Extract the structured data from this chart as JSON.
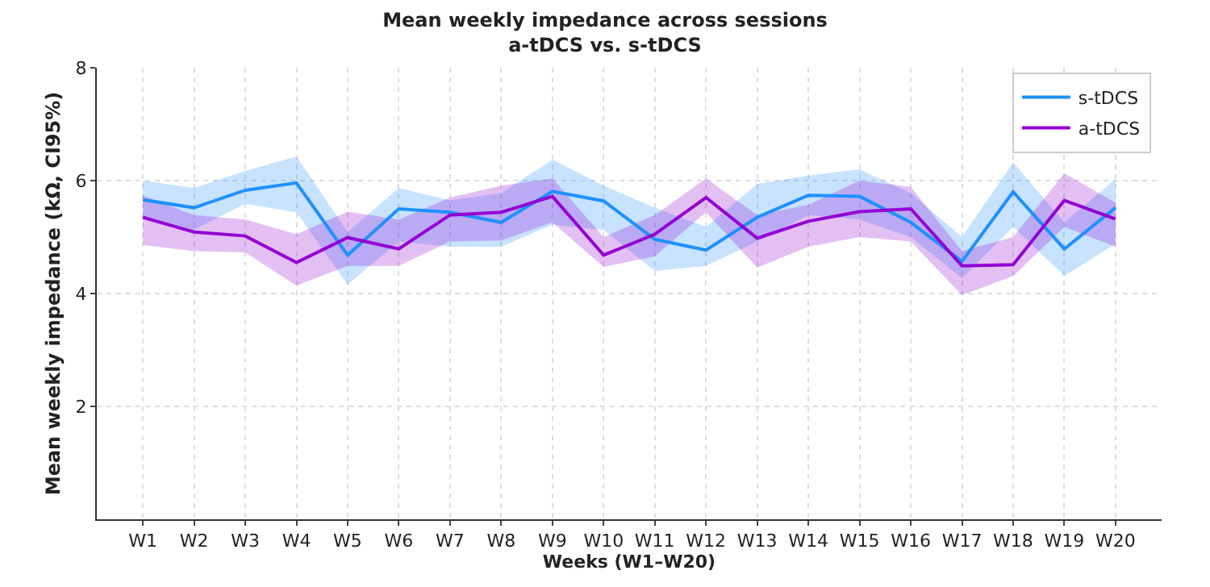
{
  "chart_data": {
    "type": "line",
    "title": "Mean weekly impedance across sessions\na-tDCS vs. s-tDCS",
    "xlabel": "Weeks (W1–W20)",
    "ylabel": "Mean weekly impedance (kΩ, CI95%)",
    "categories": [
      "W1",
      "W2",
      "W3",
      "W4",
      "W5",
      "W6",
      "W7",
      "W8",
      "W9",
      "W10",
      "W11",
      "W12",
      "W13",
      "W14",
      "W15",
      "W16",
      "W17",
      "W18",
      "W19",
      "W20"
    ],
    "series": [
      {
        "name": "s-tDCS",
        "color": "#1e90ff",
        "values": [
          5.66,
          5.52,
          5.83,
          5.96,
          4.68,
          5.5,
          5.44,
          5.26,
          5.81,
          5.64,
          4.96,
          4.77,
          5.35,
          5.74,
          5.72,
          5.26,
          4.57,
          5.8,
          4.79,
          5.52
        ],
        "lower": [
          5.39,
          5.13,
          5.59,
          5.44,
          4.16,
          4.92,
          4.83,
          4.83,
          5.22,
          5.13,
          4.4,
          4.49,
          4.92,
          5.39,
          5.31,
          5.0,
          4.27,
          5.18,
          4.31,
          4.88
        ],
        "upper": [
          6.0,
          5.87,
          6.17,
          6.43,
          5.09,
          5.87,
          5.65,
          5.78,
          6.37,
          5.91,
          5.52,
          5.18,
          5.94,
          6.09,
          6.2,
          5.78,
          5.0,
          6.32,
          5.26,
          6.03
        ]
      },
      {
        "name": "a-tDCS",
        "color": "#9400d3",
        "values": [
          5.35,
          5.09,
          5.02,
          4.55,
          4.99,
          4.79,
          5.39,
          5.44,
          5.72,
          4.68,
          5.05,
          5.7,
          4.98,
          5.28,
          5.45,
          5.5,
          4.49,
          4.51,
          5.65,
          5.32
        ],
        "lower": [
          4.86,
          4.75,
          4.73,
          4.14,
          4.49,
          4.49,
          4.92,
          4.94,
          5.26,
          4.47,
          4.66,
          5.44,
          4.46,
          4.83,
          5.0,
          4.92,
          3.97,
          4.31,
          5.18,
          4.83
        ],
        "upper": [
          5.74,
          5.39,
          5.31,
          5.05,
          5.45,
          5.31,
          5.7,
          5.91,
          6.04,
          5.0,
          5.39,
          6.04,
          5.39,
          5.57,
          6.0,
          5.89,
          4.75,
          5.0,
          6.13,
          5.61
        ]
      }
    ],
    "ylim": [
      0,
      8
    ],
    "yticks": [
      2,
      4,
      6,
      8
    ],
    "grid": true,
    "legend": "top right",
    "marker": "none",
    "line_style": "solid"
  }
}
